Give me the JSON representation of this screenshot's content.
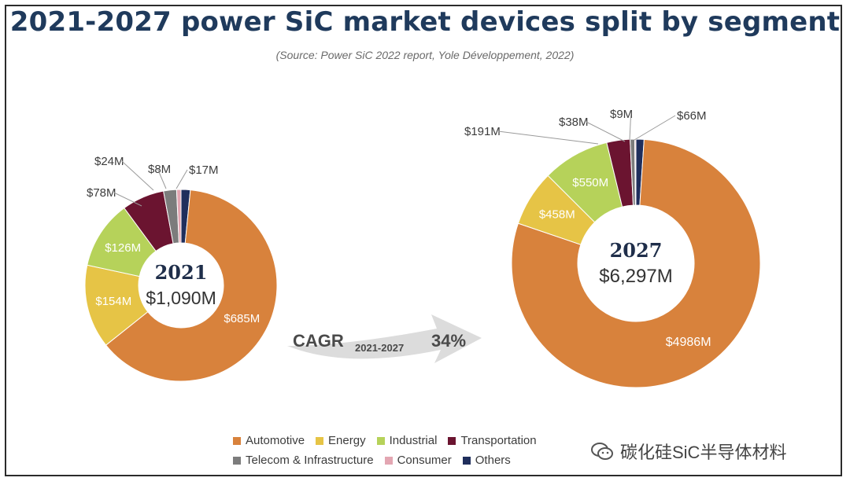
{
  "title": "2021-2027 power SiC market devices split by segment",
  "subtitle": "(Source: Power SiC 2022 report, Yole Développement, 2022)",
  "watermark": "碳化硅SiC半导体材料",
  "cagr": {
    "label": "CAGR",
    "sub": "2021-2027",
    "value": "34%"
  },
  "legend": [
    {
      "name": "Automotive",
      "color": "#d8823c"
    },
    {
      "name": "Energy",
      "color": "#e6c446"
    },
    {
      "name": "Industrial",
      "color": "#b6d25a"
    },
    {
      "name": "Transportation",
      "color": "#6b1430"
    },
    {
      "name": "Telecom & Infrastructure",
      "color": "#7c7c7c"
    },
    {
      "name": "Consumer",
      "color": "#e3a6b2"
    },
    {
      "name": "Others",
      "color": "#1f2e5c"
    }
  ],
  "chart_data": [
    {
      "type": "pie",
      "center_year": "2021",
      "center_total": "$1,090M",
      "categories": [
        "Automotive",
        "Energy",
        "Industrial",
        "Transportation",
        "Telecom & Infrastructure",
        "Consumer",
        "Others"
      ],
      "values": [
        685,
        154,
        126,
        78,
        24,
        8,
        17
      ],
      "labels": [
        "$685M",
        "$154M",
        "$126M",
        "$78M",
        "$24M",
        "$8M",
        "$17M"
      ]
    },
    {
      "type": "pie",
      "center_year": "2027",
      "center_total": "$6,297M",
      "categories": [
        "Automotive",
        "Energy",
        "Industrial",
        "Transportation",
        "Telecom & Infrastructure",
        "Consumer",
        "Others"
      ],
      "values": [
        4986,
        458,
        550,
        191,
        38,
        9,
        66
      ],
      "labels": [
        "$4986M",
        "$458M",
        "$550M",
        "$191M",
        "$38M",
        "$9M",
        "$66M"
      ]
    }
  ]
}
